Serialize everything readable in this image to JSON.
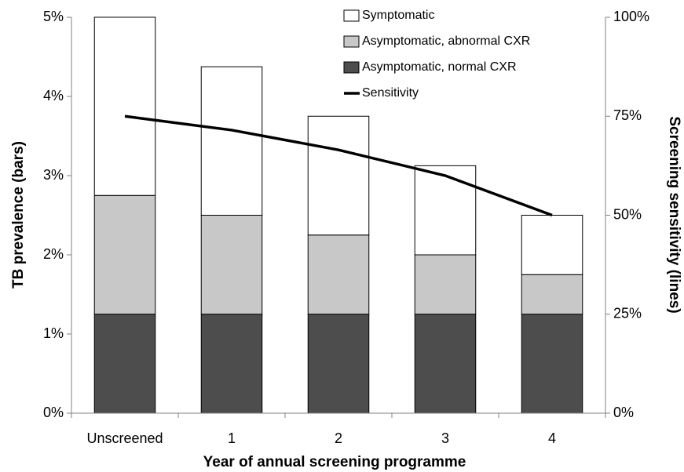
{
  "chart_data": {
    "type": "bar",
    "stacked": true,
    "x_label": "Year of annual screening programme",
    "y_label": "TB prevalence (bars)",
    "y2_label": "Screening sensitivity (lines)",
    "categories": [
      "Unscreened",
      "1",
      "2",
      "3",
      "4"
    ],
    "series": [
      {
        "name": "Asymptomatic, normal CXR",
        "color": "#4d4d4d",
        "values": [
          1.25,
          1.25,
          1.25,
          1.25,
          1.25
        ]
      },
      {
        "name": "Asymptomatic, abnormal CXR",
        "color": "#c8c8c8",
        "values": [
          1.5,
          1.25,
          1.0,
          0.75,
          0.5
        ]
      },
      {
        "name": "Symptomatic",
        "color": "#ffffff",
        "values": [
          2.25,
          1.875,
          1.5,
          1.125,
          0.75
        ]
      },
      {
        "name": "Sensitivity",
        "type": "line",
        "axis": "y2",
        "color": "#000000",
        "values": [
          75,
          71.5,
          66.5,
          60,
          50
        ]
      }
    ],
    "ylim": [
      0,
      5
    ],
    "yticks": [
      {
        "value": 0,
        "label": "0%"
      },
      {
        "value": 1,
        "label": "1%"
      },
      {
        "value": 2,
        "label": "2%"
      },
      {
        "value": 3,
        "label": "3%"
      },
      {
        "value": 4,
        "label": "4%"
      },
      {
        "value": 5,
        "label": "5%"
      }
    ],
    "y2lim": [
      0,
      100
    ],
    "y2ticks": [
      {
        "value": 0,
        "label": "0%"
      },
      {
        "value": 25,
        "label": "25%"
      },
      {
        "value": 50,
        "label": "50%"
      },
      {
        "value": 75,
        "label": "75%"
      },
      {
        "value": 100,
        "label": "100%"
      }
    ],
    "grid": false
  }
}
